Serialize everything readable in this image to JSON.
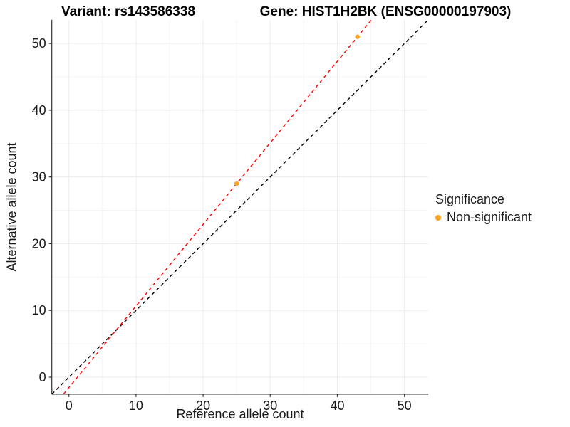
{
  "titles": {
    "variant": "Variant: rs143586338",
    "gene": "Gene: HIST1H2BK (ENSG00000197903)"
  },
  "chart_data": {
    "type": "scatter",
    "xlabel": "Reference allele count",
    "ylabel": "Alternative allele count",
    "xlim": [
      -2.55,
      53.55
    ],
    "ylim": [
      -2.55,
      53.55
    ],
    "x_ticks": [
      0,
      10,
      20,
      30,
      40,
      50
    ],
    "y_ticks": [
      0,
      10,
      20,
      30,
      40,
      50
    ],
    "x_minor_ticks": [
      5,
      15,
      25,
      35,
      45
    ],
    "y_minor_ticks": [
      5,
      15,
      25,
      35,
      45
    ],
    "grid": true,
    "series": [
      {
        "name": "Non-significant",
        "color": "#FFA320",
        "points": [
          {
            "x": 25,
            "y": 29
          },
          {
            "x": 43,
            "y": 51
          }
        ]
      }
    ],
    "reference_lines": [
      {
        "name": "identity-line",
        "style": "dashed",
        "color": "#000000",
        "slope": 1,
        "intercept": 0
      },
      {
        "name": "trend-line",
        "style": "dashed",
        "color": "#FF0000",
        "slope": 1.2222,
        "intercept": -1.5556
      }
    ],
    "legend": {
      "title": "Significance",
      "position": "right",
      "items": [
        {
          "label": "Non-significant",
          "color": "#FFA320"
        }
      ]
    },
    "style": {
      "axis_color": "#333333",
      "major_grid_color": "#ECECEC",
      "minor_grid_color": "#F5F5F5",
      "text_color": "#1a1a1a",
      "background": "#FFFFFF"
    }
  }
}
